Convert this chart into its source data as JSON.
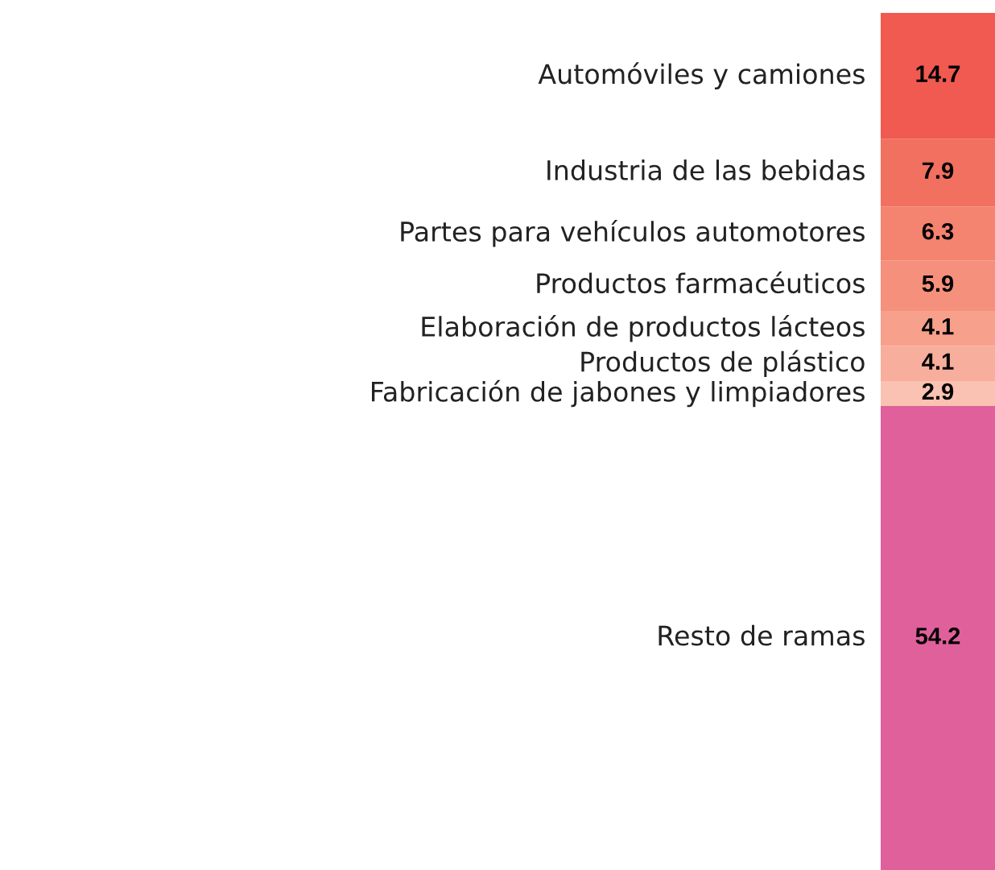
{
  "chart_data": {
    "type": "bar",
    "stacked": true,
    "categories": [
      null
    ],
    "data_labels": true,
    "legend": false,
    "tick_labels": false,
    "series": [
      {
        "name": "Resto de ramas",
        "color": "#e0609c",
        "values": [
          54.2
        ]
      },
      {
        "name": "Fabricación de jabones y limpiadores",
        "color": "#fac2b2",
        "values": [
          2.9
        ]
      },
      {
        "name": "Productos de plástico",
        "color": "#f8ae9c",
        "values": [
          4.1
        ]
      },
      {
        "name": "Elaboración de productos lácteos",
        "color": "#f7a08c",
        "values": [
          4.1
        ]
      },
      {
        "name": "Productos farmacéuticos",
        "color": "#f5907c",
        "values": [
          5.9
        ]
      },
      {
        "name": "Partes para vehículos automotores",
        "color": "#f4836f",
        "values": [
          6.3
        ]
      },
      {
        "name": "Industria de las bebidas",
        "color": "#f2705f",
        "values": [
          7.9
        ]
      },
      {
        "name": "Automóviles y camiones",
        "color": "#f05a50",
        "values": [
          14.7
        ]
      }
    ]
  }
}
